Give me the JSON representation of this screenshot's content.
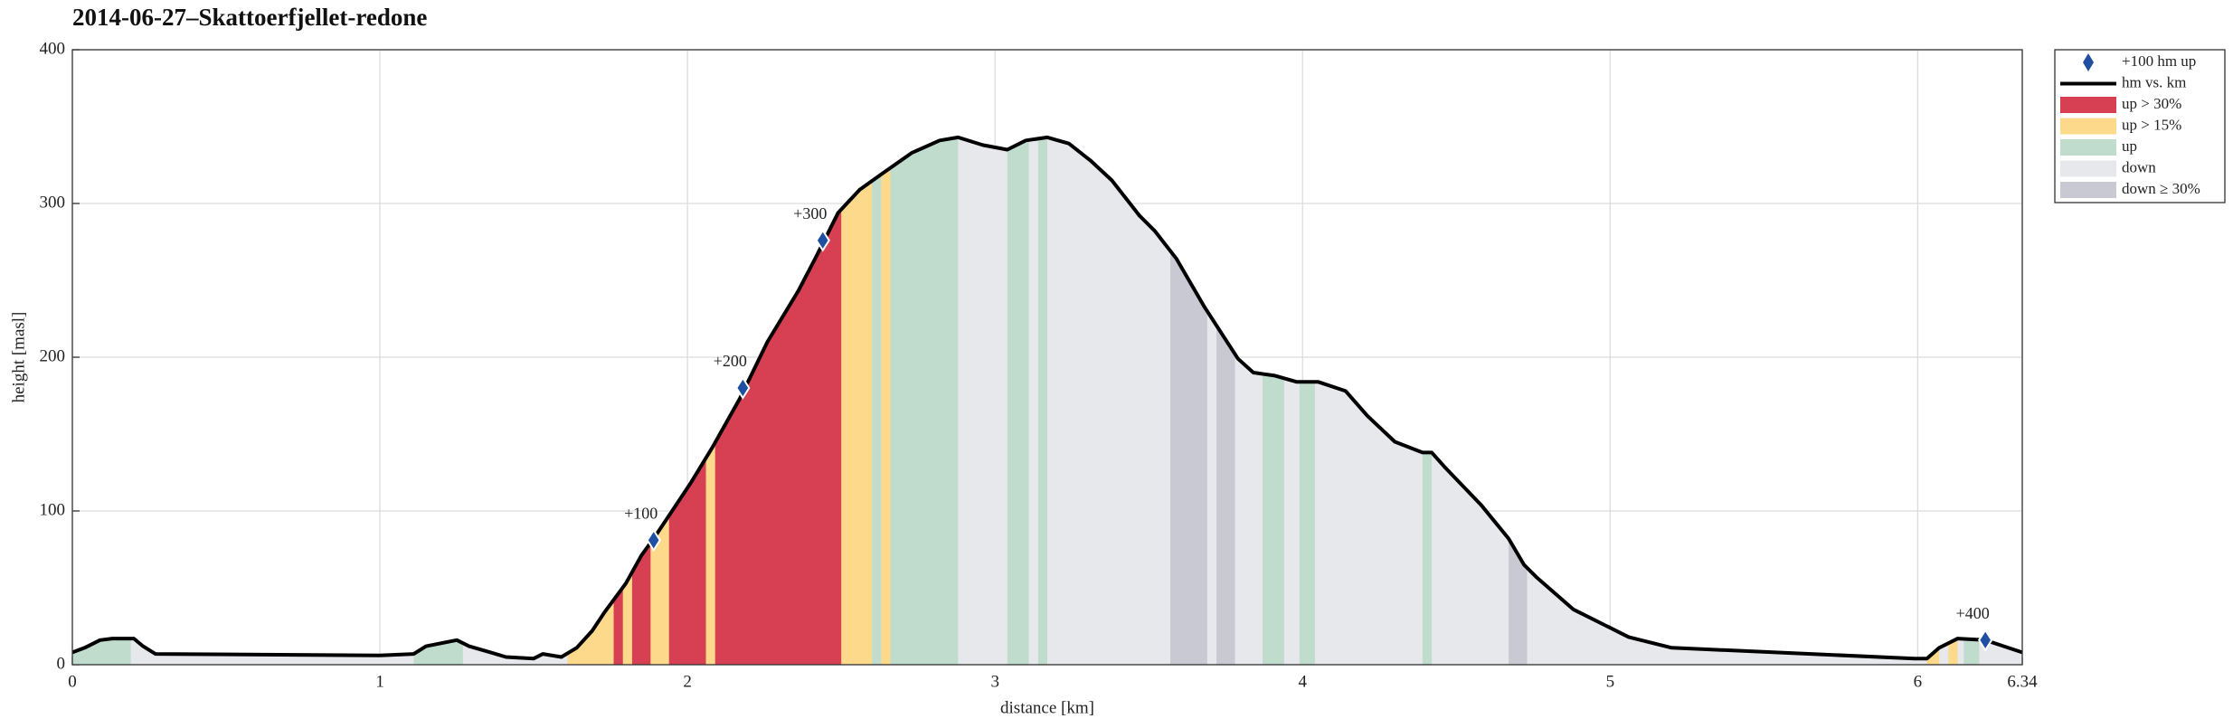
{
  "chart_data": {
    "type": "elevation-profile",
    "title": "2014-06-27–Skattoerfjellet-redone",
    "xlabel": "distance [km]",
    "ylabel": "height [masl]",
    "xlim": [
      0,
      6.34
    ],
    "ylim": [
      0,
      400
    ],
    "xticks": [
      0,
      1,
      2,
      3,
      4,
      5,
      6,
      6.34
    ],
    "yticks": [
      0,
      100,
      200,
      300,
      400
    ],
    "grid": true,
    "legend": "outside-top-right",
    "markers": {
      "name": "+100 hm up",
      "color": "#1f4fa0",
      "x": [
        1.89,
        2.18,
        2.44,
        6.22
      ],
      "values": [
        81,
        180,
        276,
        16
      ],
      "labels": [
        "+100",
        "+200",
        "+300",
        "+400"
      ]
    },
    "line": {
      "name": "hm vs. km",
      "color": "#000000",
      "x": [
        0,
        0.04,
        0.09,
        0.13,
        0.2,
        0.23,
        0.27,
        1.0,
        1.11,
        1.15,
        1.2,
        1.25,
        1.29,
        1.36,
        1.41,
        1.5,
        1.53,
        1.59,
        1.64,
        1.69,
        1.73,
        1.8,
        1.85,
        1.89,
        1.94,
        2.01,
        2.08,
        2.17,
        2.26,
        2.36,
        2.42,
        2.49,
        2.56,
        2.63,
        2.73,
        2.82,
        2.88,
        2.96,
        3.04,
        3.1,
        3.17,
        3.24,
        3.31,
        3.38,
        3.47,
        3.52,
        3.59,
        3.68,
        3.79,
        3.84,
        3.91,
        3.98,
        4.05,
        4.14,
        4.21,
        4.3,
        4.39,
        4.42,
        4.46,
        4.58,
        4.67,
        4.72,
        4.76,
        4.88,
        4.99,
        5.06,
        5.2,
        5.99,
        6.03,
        6.07,
        6.13,
        6.22,
        6.28,
        6.34
      ],
      "values": [
        8,
        11,
        16,
        17,
        17,
        12,
        7,
        6,
        7,
        12,
        14,
        16,
        12,
        8,
        5,
        4,
        7,
        5,
        11,
        22,
        34,
        53,
        71,
        82,
        97,
        118,
        141,
        173,
        210,
        243,
        266,
        294,
        309,
        319,
        333,
        341,
        343,
        338,
        335,
        341,
        343,
        339,
        328,
        315,
        292,
        282,
        264,
        233,
        199,
        190,
        188,
        184,
        184,
        178,
        162,
        145,
        138,
        138,
        129,
        104,
        82,
        65,
        57,
        36,
        25,
        18,
        11,
        4,
        4,
        11,
        17,
        16,
        12,
        8
      ]
    },
    "band_series": [
      {
        "name": "up > 30%",
        "color": "#d73f52"
      },
      {
        "name": "up > 15%",
        "color": "#fdd98c"
      },
      {
        "name": "up",
        "color": "#c0dccd"
      },
      {
        "name": "down",
        "color": "#e7e8eb"
      },
      {
        "name": "down ≥ 30%",
        "color": "#c8c9d2"
      }
    ],
    "bands": [
      {
        "x": [
          0,
          0.19
        ],
        "kind": "up"
      },
      {
        "x": [
          0.19,
          1.11
        ],
        "kind": "down"
      },
      {
        "x": [
          1.11,
          1.27
        ],
        "kind": "up"
      },
      {
        "x": [
          1.27,
          1.61
        ],
        "kind": "down"
      },
      {
        "x": [
          1.61,
          1.76
        ],
        "kind": "up > 15%"
      },
      {
        "x": [
          1.76,
          1.79
        ],
        "kind": "up > 30%"
      },
      {
        "x": [
          1.79,
          1.82
        ],
        "kind": "up > 15%"
      },
      {
        "x": [
          1.82,
          1.88
        ],
        "kind": "up > 30%"
      },
      {
        "x": [
          1.88,
          1.94
        ],
        "kind": "up > 15%"
      },
      {
        "x": [
          1.94,
          2.06
        ],
        "kind": "up > 30%"
      },
      {
        "x": [
          2.06,
          2.09
        ],
        "kind": "up > 15%"
      },
      {
        "x": [
          2.09,
          2.5
        ],
        "kind": "up > 30%"
      },
      {
        "x": [
          2.5,
          2.6
        ],
        "kind": "up > 15%"
      },
      {
        "x": [
          2.6,
          2.63
        ],
        "kind": "up"
      },
      {
        "x": [
          2.63,
          2.66
        ],
        "kind": "up > 15%"
      },
      {
        "x": [
          2.66,
          2.88
        ],
        "kind": "up"
      },
      {
        "x": [
          2.88,
          3.04
        ],
        "kind": "down"
      },
      {
        "x": [
          3.04,
          3.11
        ],
        "kind": "up"
      },
      {
        "x": [
          3.11,
          3.14
        ],
        "kind": "down"
      },
      {
        "x": [
          3.14,
          3.17
        ],
        "kind": "up"
      },
      {
        "x": [
          3.17,
          3.57
        ],
        "kind": "down"
      },
      {
        "x": [
          3.57,
          3.69
        ],
        "kind": "down ≥ 30%"
      },
      {
        "x": [
          3.69,
          3.72
        ],
        "kind": "down"
      },
      {
        "x": [
          3.72,
          3.78
        ],
        "kind": "down ≥ 30%"
      },
      {
        "x": [
          3.78,
          3.87
        ],
        "kind": "down"
      },
      {
        "x": [
          3.87,
          3.94
        ],
        "kind": "up"
      },
      {
        "x": [
          3.94,
          3.99
        ],
        "kind": "down"
      },
      {
        "x": [
          3.99,
          4.04
        ],
        "kind": "up"
      },
      {
        "x": [
          4.04,
          4.39
        ],
        "kind": "down"
      },
      {
        "x": [
          4.39,
          4.42
        ],
        "kind": "up"
      },
      {
        "x": [
          4.42,
          4.67
        ],
        "kind": "down"
      },
      {
        "x": [
          4.67,
          4.73
        ],
        "kind": "down ≥ 30%"
      },
      {
        "x": [
          4.73,
          6.03
        ],
        "kind": "down"
      },
      {
        "x": [
          6.03,
          6.07
        ],
        "kind": "up > 15%"
      },
      {
        "x": [
          6.07,
          6.1
        ],
        "kind": "down"
      },
      {
        "x": [
          6.1,
          6.13
        ],
        "kind": "up > 15%"
      },
      {
        "x": [
          6.13,
          6.15
        ],
        "kind": "down"
      },
      {
        "x": [
          6.15,
          6.2
        ],
        "kind": "up"
      },
      {
        "x": [
          6.2,
          6.34
        ],
        "kind": "down"
      }
    ]
  }
}
